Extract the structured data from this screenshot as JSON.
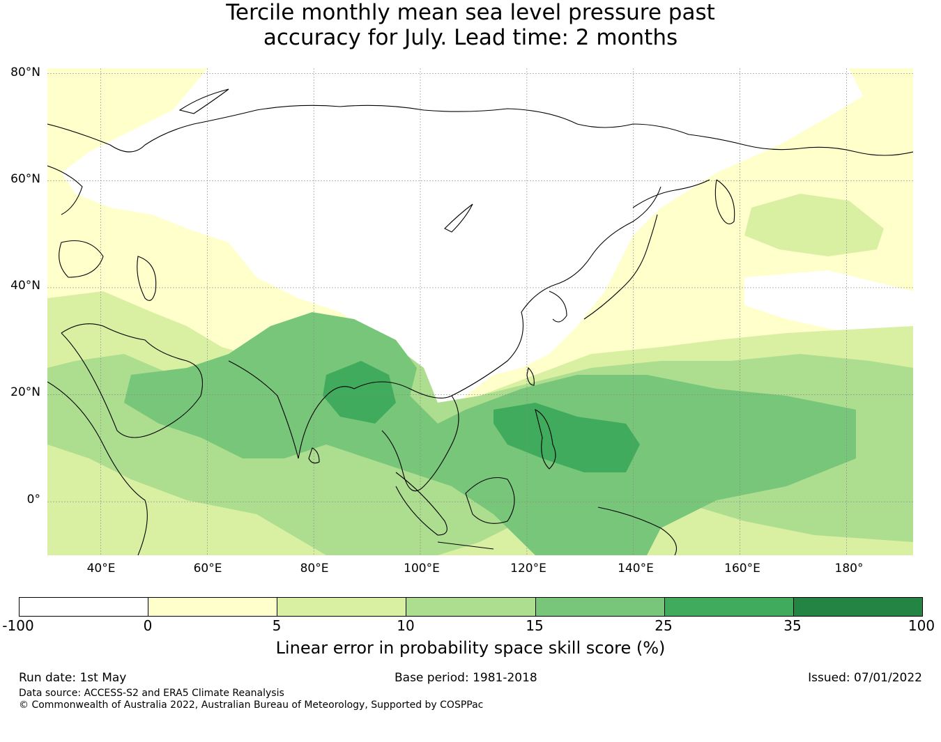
{
  "title": {
    "line1": "Tercile monthly mean sea level pressure past",
    "line2": "accuracy for July. Lead time: 2 months"
  },
  "map": {
    "lat_labels": [
      "80°N",
      "60°N",
      "40°N",
      "20°N",
      "0°"
    ],
    "lon_labels": [
      "40°E",
      "60°E",
      "80°E",
      "100°E",
      "120°E",
      "140°E",
      "160°E",
      "180°"
    ],
    "lon_range": [
      30,
      192.5
    ],
    "lat_range": [
      -10,
      81
    ]
  },
  "legend": {
    "ticks": [
      "-100",
      "0",
      "5",
      "10",
      "15",
      "25",
      "35",
      "100"
    ],
    "colors": [
      "#ffffff",
      "#ffffcc",
      "#d9f0a3",
      "#addd8e",
      "#78c679",
      "#41ab5d",
      "#238443"
    ],
    "label": "Linear error in probability space skill score (%)"
  },
  "footer": {
    "run_date": "Run date: 1st May",
    "base_period": "Base period: 1981-2018",
    "issued": "Issued: 07/01/2022",
    "data_source": "Data source: ACCESS-S2 and ERA5 Climate Reanalysis",
    "copyright": "© Commonwealth of Australia 2022, Australian Bureau of Meteorology, Supported by COSPPac"
  }
}
